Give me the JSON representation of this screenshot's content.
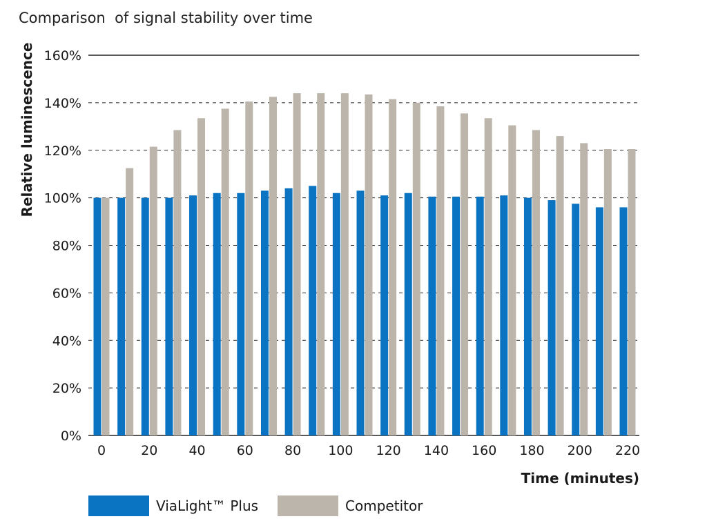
{
  "chart_data": {
    "type": "bar",
    "title": "Comparison  of signal stability over time",
    "xlabel": "Time (minutes)",
    "ylabel": "Relative luminescence",
    "ylim": [
      0,
      160
    ],
    "yticks": [
      0,
      20,
      40,
      60,
      80,
      100,
      120,
      140,
      160
    ],
    "ytick_labels": [
      "0%",
      "20%",
      "40%",
      "60%",
      "80%",
      "100%",
      "120%",
      "140%",
      "160%"
    ],
    "xtick_labels": [
      "0",
      "20",
      "40",
      "60",
      "80",
      "100",
      "120",
      "140",
      "160",
      "180",
      "200",
      "220"
    ],
    "categories": [
      0,
      10,
      20,
      30,
      40,
      50,
      60,
      70,
      80,
      90,
      100,
      110,
      120,
      130,
      140,
      150,
      160,
      170,
      180,
      190,
      200,
      210,
      220
    ],
    "series": [
      {
        "name": "ViaLight™ Plus",
        "color": "#0a73c2",
        "values": [
          100,
          100,
          100,
          100,
          101,
          102,
          102,
          103,
          104,
          105,
          102,
          103,
          101,
          102,
          100.5,
          100.5,
          100.5,
          101,
          100,
          99,
          97.5,
          96,
          96
        ]
      },
      {
        "name": "Competitor",
        "color": "#bcb5ab",
        "values": [
          100,
          112.5,
          121.5,
          128.5,
          133.5,
          137.5,
          140.5,
          142.5,
          144,
          144,
          144,
          143.5,
          141.5,
          140,
          138.5,
          135.5,
          133.5,
          130.5,
          128.5,
          126,
          123,
          120.5,
          120.5
        ]
      }
    ],
    "grid": "horizontal dashed",
    "legend_position": "bottom-left"
  }
}
